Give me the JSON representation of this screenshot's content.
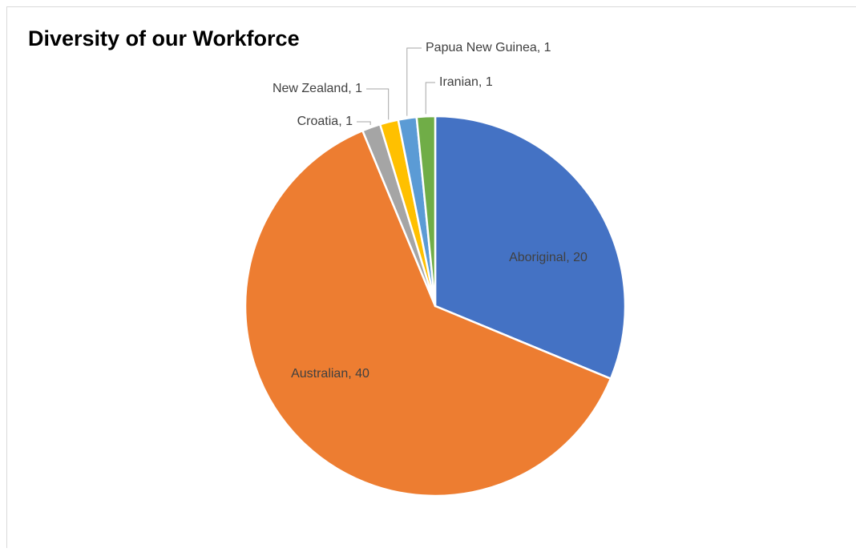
{
  "chart_data": {
    "type": "pie",
    "title": "Diversity of our Workforce",
    "values": [
      20,
      40,
      1,
      1,
      1,
      1
    ],
    "value_labels": [
      "Aboriginal, 20",
      "Australian, 40",
      "Croatia, 1",
      "New Zealand, 1",
      "Papua New Guinea, 1",
      "Iranian, 1"
    ],
    "colors": [
      "#4472c4",
      "#ed7d31",
      "#a5a5a5",
      "#ffc000",
      "#5b9bd5",
      "#70ad47"
    ]
  }
}
